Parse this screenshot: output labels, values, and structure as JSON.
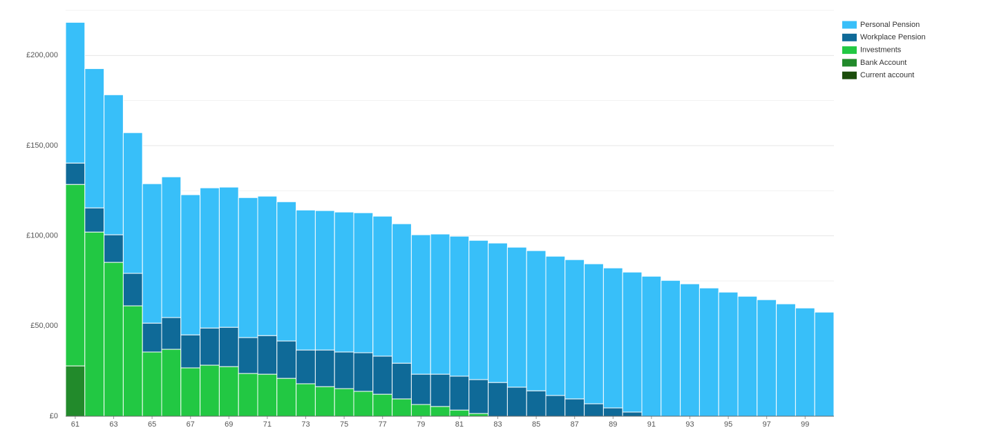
{
  "chart_data": {
    "type": "stacked_bar",
    "categories": [
      "61",
      null,
      "63",
      null,
      "65",
      null,
      "67",
      null,
      "69",
      null,
      "71",
      null,
      "73",
      null,
      "75",
      null,
      "77",
      null,
      "79",
      null,
      "81",
      null,
      "83",
      null,
      "85",
      null,
      "87",
      null,
      "89",
      null,
      "91",
      null,
      "93",
      null,
      "95",
      null,
      "97",
      null,
      "99",
      null
    ],
    "series": [
      {
        "name": "Personal Pension",
        "color": "#38bff9",
        "values": [
          78000,
          77200,
          77600,
          78000,
          77300,
          78000,
          77700,
          77700,
          77700,
          77600,
          77300,
          77200,
          77600,
          77300,
          77600,
          77600,
          77600,
          77300,
          77300,
          77700,
          77600,
          77200,
          77300,
          77600,
          77700,
          77200,
          77200,
          77600,
          77600,
          77600,
          77600,
          75300,
          73400,
          71100,
          68800,
          66500,
          64600,
          62300,
          60000,
          57700
        ]
      },
      {
        "name": "Workplace Pension",
        "color": "#0f6a98",
        "values": [
          11850,
          13400,
          15300,
          18000,
          16000,
          17600,
          18300,
          20600,
          21800,
          19900,
          21400,
          20700,
          18700,
          20300,
          20300,
          21400,
          21100,
          19800,
          16800,
          17900,
          18800,
          18800,
          18700,
          16100,
          14100,
          11500,
          9600,
          6900,
          4600,
          2300,
          0,
          0,
          0,
          0,
          0,
          0,
          0,
          0,
          0,
          0
        ]
      },
      {
        "name": "Investments",
        "color": "#22c843",
        "values": [
          100600,
          102100,
          85300,
          61200,
          35600,
          37100,
          26800,
          28300,
          27500,
          23700,
          23300,
          21000,
          18000,
          16400,
          15300,
          13800,
          12200,
          9600,
          6500,
          5400,
          3400,
          1500,
          0,
          0,
          0,
          0,
          0,
          0,
          0,
          0,
          0,
          0,
          0,
          0,
          0,
          0,
          0,
          0,
          0,
          0
        ]
      },
      {
        "name": "Bank Account",
        "color": "#228a2b",
        "values": [
          27900,
          0,
          0,
          0,
          0,
          0,
          0,
          0,
          0,
          0,
          0,
          0,
          0,
          0,
          0,
          0,
          0,
          0,
          0,
          0,
          0,
          0,
          0,
          0,
          0,
          0,
          0,
          0,
          0,
          0,
          0,
          0,
          0,
          0,
          0,
          0,
          0,
          0,
          0,
          0
        ]
      },
      {
        "name": "Current account",
        "color": "#1b4d0c",
        "values": [
          0,
          0,
          0,
          0,
          0,
          0,
          0,
          0,
          0,
          0,
          0,
          0,
          0,
          0,
          0,
          0,
          0,
          0,
          0,
          0,
          0,
          0,
          0,
          0,
          0,
          0,
          0,
          0,
          0,
          0,
          0,
          0,
          0,
          0,
          0,
          0,
          0,
          0,
          0,
          0
        ]
      }
    ],
    "ylim": [
      0,
      225000
    ],
    "yticks": [
      {
        "value": 0,
        "label": "£0"
      },
      {
        "value": 50000,
        "label": "£50,000"
      },
      {
        "value": 100000,
        "label": "£100,000"
      },
      {
        "value": 150000,
        "label": "£150,000"
      },
      {
        "value": 200000,
        "label": "£200,000"
      }
    ],
    "minor_yticks": [
      25000,
      75000,
      125000,
      175000,
      225000
    ],
    "grid": true,
    "legend": "right"
  }
}
